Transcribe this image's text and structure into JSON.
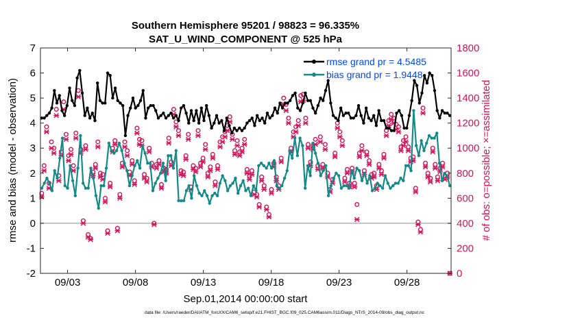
{
  "chart_data": {
    "type": "line",
    "title_line1": "Southern Hemisphere 95201 / 98823 = 96.335%",
    "title_line2": "SAT_U_WIND_COMPONENT @ 525 hPa",
    "xlabel": "Sep.01,2014 00:00:00 start",
    "ylabel_left": "rmse and bias (model - observation)",
    "ylabel_right": "# of obs: o=possible; ×=assimilated",
    "footer": "data file: /Users/raeder/DAI/ATM_forcXX/CAM6_setup/f.e21.FHIST_BGC.f09_025.CAM6assim.011/Diags_NTrS_2014-09/obs_diag_output.nc",
    "x_range_days": [
      1.0,
      31.25
    ],
    "x_ticks": [
      {
        "day": 3,
        "label": "09/03"
      },
      {
        "day": 8,
        "label": "09/08"
      },
      {
        "day": 13,
        "label": "09/13"
      },
      {
        "day": 18,
        "label": "09/18"
      },
      {
        "day": 23,
        "label": "09/23"
      },
      {
        "day": 28,
        "label": "09/28"
      }
    ],
    "ylim_left": [
      -2,
      7
    ],
    "yticks_left": [
      "-2",
      "-1",
      "0",
      "1",
      "2",
      "3",
      "4",
      "5",
      "6",
      "7"
    ],
    "ylim_right": [
      0,
      1800
    ],
    "yticks_right": [
      "0",
      "200",
      "400",
      "600",
      "800",
      "1000",
      "1200",
      "1400",
      "1600",
      "1800"
    ],
    "legend_position": "top-right",
    "colors": {
      "rmse": "#000000",
      "bias": "#138a87",
      "obs": "#d6125a",
      "zero_line": "#b3b3b3",
      "legend_text": "#0047ff"
    },
    "series": [
      {
        "name": "rmse grand pr = 4.5485",
        "axis": "left",
        "values": [
          4.2,
          4.2,
          4.3,
          4.4,
          4.6,
          5.3,
          4.8,
          5.1,
          4.5,
          4.3,
          4.7,
          5.4,
          4.9,
          4.7,
          5.8,
          6.1,
          5.2,
          4.3,
          4.6,
          4.2,
          4.4,
          4.1,
          5.6,
          4.9,
          4.8,
          4.8,
          6.0,
          5.9,
          5.0,
          5.4,
          4.9,
          4.8,
          4.7,
          3.5,
          4.3,
          4.6,
          5.0,
          4.6,
          4.7,
          4.9,
          5.3,
          4.2,
          4.6,
          4.7,
          4.7,
          4.5,
          4.2,
          4.3,
          4.4,
          4.2,
          4.3,
          4.4,
          4.2,
          4.3,
          4.1,
          4.6,
          4.7,
          4.4,
          4.0,
          4.5,
          4.1,
          4.5,
          4.0,
          4.6,
          4.1,
          4.7,
          4.3,
          3.8,
          4.0,
          4.3,
          4.0,
          4.1,
          3.7,
          4.2,
          3.9,
          3.6,
          3.8,
          3.7,
          3.8,
          3.7,
          3.8,
          4.0,
          4.1,
          4.2,
          3.9,
          4.3,
          4.1,
          4.2,
          4.0,
          4.4,
          4.2,
          4.3,
          4.6,
          4.4,
          4.8,
          4.6,
          4.8,
          4.8,
          4.9,
          5.1,
          5.2,
          4.6,
          4.5,
          4.8,
          5.2,
          4.9,
          4.9,
          4.6,
          4.4,
          4.7,
          5.0,
          4.9,
          5.3,
          5.7,
          4.8,
          4.3,
          4.2,
          4.1,
          4.6,
          4.3,
          4.4,
          4.4,
          4.2,
          4.2,
          4.3,
          4.7,
          4.3,
          4.0,
          4.6,
          4.2,
          4.1,
          4.3,
          3.9,
          4.5,
          4.1,
          4.1,
          3.8,
          3.8,
          3.7,
          3.7,
          4.4,
          4.5,
          4.3,
          3.8,
          3.8,
          4.3,
          4.9,
          5.7,
          5.5,
          4.8,
          5.2,
          5.9,
          5.6,
          6.0,
          5.9,
          5.3,
          4.5,
          4.2,
          4.5,
          4.4,
          4.4,
          4.3
        ]
      },
      {
        "name": "bias grand pr = 1.9448",
        "axis": "left",
        "values": [
          1.4,
          1.6,
          1.8,
          1.6,
          1.3,
          2.1,
          1.8,
          2.6,
          3.4,
          1.5,
          1.4,
          2.3,
          1.7,
          1.1,
          2.2,
          3.5,
          1.6,
          1.4,
          1.4,
          2.2,
          1.8,
          1.1,
          0.6,
          1.5,
          1.5,
          2.2,
          3.2,
          2.9,
          2.8,
          2.9,
          3.2,
          2.9,
          2.4,
          2.1,
          1.5,
          1.9,
          2.3,
          2.5,
          2.2,
          3.1,
          2.8,
          2.4,
          2.4,
          1.3,
          1.6,
          1.8,
          2.0,
          2.4,
          1.7,
          2.7,
          2.7,
          2.2,
          2.9,
          0.9,
          0.9,
          0.9,
          1.3,
          1.5,
          1.0,
          1.9,
          1.5,
          1.2,
          1.1,
          1.3,
          1.1,
          0.8,
          1.1,
          1.2,
          1.1,
          1.6,
          1.9,
          1.7,
          1.3,
          1.5,
          1.6,
          1.8,
          1.2,
          1.5,
          1.7,
          1.3,
          1.4,
          1.1,
          1.5,
          1.3,
          2.3,
          2.4,
          2.3,
          2.2,
          2.4,
          2.2,
          2.5,
          1.5,
          1.4,
          1.5,
          1.8,
          2.1,
          2.9,
          2.6,
          3.4,
          2.7,
          3.4,
          3.1,
          1.4,
          2.3,
          1.9,
          3.2,
          2.8,
          2.4,
          1.9,
          2.1,
          2.3,
          1.1,
          1.5,
          1.8,
          2.0,
          1.9,
          1.4,
          1.5,
          1.5,
          1.4,
          2.1,
          1.8,
          2.2,
          2.1,
          1.7,
          2.0,
          1.6,
          1.9,
          1.3,
          1.4,
          1.6,
          1.5,
          1.4,
          1.9,
          1.6,
          1.4,
          1.5,
          1.6,
          1.6,
          1.8,
          1.7,
          2.3,
          2.3,
          2.1,
          4.5,
          3.1,
          2.7,
          3.3,
          2.9,
          3.2,
          3.5,
          3.4,
          3.4,
          3.6,
          2.4,
          1.7,
          2.0,
          1.9,
          1.5
        ]
      },
      {
        "name": "possible",
        "axis": "right",
        "marker": "circle",
        "values": [
          640,
          860,
          1170,
          720,
          1050,
          1000,
          1310,
          780,
          970,
          1370,
          1110,
          940,
          990,
          860,
          1120,
          1460,
          990,
          420,
          1020,
          310,
          280,
          810,
          870,
          1050,
          800,
          790,
          600,
          340,
          720,
          1000,
          1060,
          360,
          630,
          880,
          1050,
          980,
          810,
          900,
          740,
          1160,
          1070,
          1060,
          790,
          760,
          1000,
          880,
          400,
          870,
          900,
          710,
          840,
          830,
          1080,
          890,
          1310,
          1210,
          1140,
          820,
          810,
          940,
          1110,
          690,
          860,
          840,
          1140,
          880,
          920,
          1030,
          800,
          850,
          950,
          730,
          860,
          1050,
          1090,
          1130,
          1180,
          1250,
          1110,
          980,
          1060,
          970,
          1000,
          1070,
          830,
          780,
          820,
          650,
          630,
          550,
          770,
          700,
          530,
          470,
          670,
          880,
          770,
          700,
          920,
          1400,
          1350,
          1240,
          1000,
          1130,
          1170,
          1220,
          1420,
          1430,
          1240,
          1030,
          890,
          1020,
          1070,
          860,
          1090,
          870,
          1030,
          800,
          670,
          750,
          960,
          1200,
          1130,
          1060,
          760,
          830,
          720,
          840,
          720,
          550,
          960,
          1020,
          820,
          970,
          900,
          790,
          800,
          700,
          870,
          820,
          950,
          1140,
          1220,
          1270,
          1240,
          1190,
          1170,
          1010,
          1060,
          1090,
          1010,
          920,
          930,
          680,
          410,
          350,
          1320,
          880,
          800,
          760,
          1000,
          870,
          770,
          840,
          880,
          780,
          800,
          0
        ]
      },
      {
        "name": "assimilated",
        "axis": "right",
        "marker": "x",
        "values": [
          610,
          820,
          1130,
          680,
          1000,
          960,
          1260,
          740,
          940,
          1310,
          1070,
          900,
          950,
          820,
          1080,
          1410,
          960,
          400,
          990,
          290,
          270,
          780,
          840,
          1010,
          770,
          750,
          570,
          320,
          690,
          970,
          1030,
          340,
          600,
          850,
          1010,
          940,
          780,
          870,
          710,
          1120,
          1030,
          1020,
          760,
          730,
          970,
          850,
          390,
          840,
          870,
          680,
          810,
          800,
          1040,
          860,
          1270,
          1170,
          1100,
          790,
          780,
          910,
          1070,
          670,
          830,
          810,
          1100,
          850,
          890,
          990,
          770,
          820,
          920,
          700,
          830,
          1010,
          1050,
          1090,
          1140,
          1210,
          1070,
          950,
          1020,
          940,
          970,
          1030,
          800,
          750,
          790,
          630,
          610,
          530,
          740,
          670,
          510,
          450,
          640,
          850,
          740,
          670,
          890,
          1350,
          1300,
          1200,
          970,
          1090,
          1130,
          1180,
          1370,
          1380,
          1200,
          1000,
          860,
          990,
          1030,
          830,
          1050,
          840,
          990,
          770,
          650,
          720,
          930,
          1160,
          1090,
          1020,
          730,
          800,
          690,
          810,
          690,
          430,
          930,
          980,
          790,
          940,
          870,
          760,
          770,
          670,
          840,
          790,
          920,
          1100,
          1180,
          1230,
          1200,
          1150,
          1130,
          980,
          1020,
          1050,
          980,
          890,
          900,
          650,
          390,
          330,
          1280,
          850,
          770,
          730,
          970,
          840,
          740,
          810,
          850,
          750,
          770,
          0
        ]
      }
    ]
  }
}
